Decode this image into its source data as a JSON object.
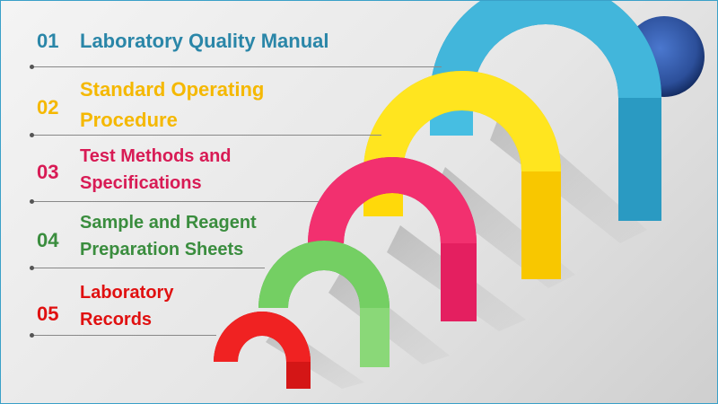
{
  "items": [
    {
      "number": "01",
      "label": "Laboratory Quality Manual",
      "color": "#2a86a8"
    },
    {
      "number": "02",
      "label": "Standard Operating Procedure",
      "color": "#f5b800"
    },
    {
      "number": "03",
      "label": "Test Methods and Specifications",
      "color": "#d81b55"
    },
    {
      "number": "04",
      "label": "Sample and Reagent Preparation Sheets",
      "color": "#3a8d3e"
    },
    {
      "number": "05",
      "label": "Laboratory Records",
      "color": "#e01010"
    }
  ],
  "colors": {
    "arch_1": "#3fb2d6",
    "arch_2": "#ffe21a",
    "arch_3": "#f0286e",
    "arch_4": "#72cc62",
    "arch_5": "#ee1c1c",
    "circle": "#3d62b8"
  }
}
